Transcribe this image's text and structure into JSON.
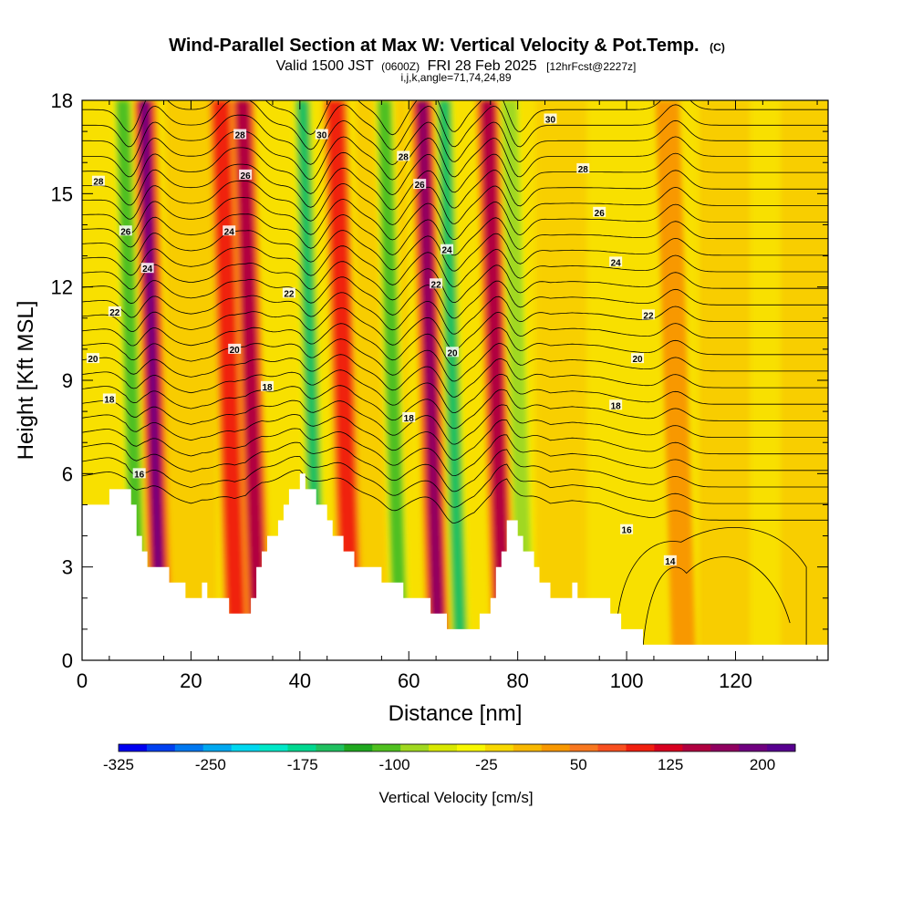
{
  "title": {
    "main": "Wind-Parallel Section at Max W: Vertical Velocity & Pot.Temp.",
    "copyright": "(C)",
    "valid_prefix": "Valid 1500 JST",
    "valid_z": "(0600Z)",
    "valid_date": "FRI 28 Feb 2025",
    "forecast": "[12hrFcst@2227z]",
    "indices": "i,j,k,angle=71,74,24,89"
  },
  "chart_data": {
    "type": "heatmap",
    "xlabel": "Distance [nm]",
    "ylabel": "Height [Kft MSL]",
    "xlim": [
      0,
      137
    ],
    "ylim": [
      0,
      18
    ],
    "xticks": [
      "0",
      "20",
      "40",
      "60",
      "80",
      "100",
      "120"
    ],
    "yticks": [
      "0",
      "3",
      "6",
      "9",
      "12",
      "15",
      "18"
    ],
    "colorbar": {
      "label": "Vertical Velocity [cm/s]",
      "tick_labels": [
        "-325",
        "-250",
        "-175",
        "-100",
        "-25",
        "50",
        "125",
        "200"
      ],
      "colors": [
        "#0000f0",
        "#0040f0",
        "#0078f0",
        "#00a8f0",
        "#00d8f0",
        "#00e8c8",
        "#00d890",
        "#20c060",
        "#20a820",
        "#50c020",
        "#a0d820",
        "#d8e800",
        "#f8f800",
        "#f8d800",
        "#f8b800",
        "#f89800",
        "#f87820",
        "#f85020",
        "#f02010",
        "#d80020",
        "#b00040",
        "#900060",
        "#700080",
        "#580090"
      ]
    },
    "terrain_kft": {
      "x_nm": [
        0,
        5,
        8,
        10,
        12,
        15,
        18,
        20,
        22,
        25,
        28,
        30,
        33,
        36,
        40,
        43,
        45,
        48,
        50,
        55,
        58,
        62,
        65,
        68,
        72,
        75,
        78,
        80,
        83,
        86,
        90,
        95,
        100,
        105,
        110,
        115,
        120,
        125,
        130,
        135,
        137
      ],
      "h_kft": [
        4.8,
        5.3,
        5.5,
        4.0,
        3.0,
        2.8,
        2.3,
        2.0,
        2.3,
        2.0,
        1.3,
        1.6,
        3.5,
        4.5,
        6.0,
        5.2,
        4.3,
        3.5,
        3.0,
        2.7,
        2.3,
        2.0,
        1.5,
        1.0,
        1.0,
        2.0,
        4.5,
        4.0,
        3.0,
        2.0,
        2.3,
        2.0,
        1.0,
        0.4,
        0.3,
        0.3,
        0.3,
        0.3,
        0.3,
        0.3,
        0.3
      ]
    },
    "updraft_bands": [
      {
        "x_nm": 13,
        "w_cm_s": 200
      },
      {
        "x_nm": 27,
        "w_cm_s": 125
      },
      {
        "x_nm": 31,
        "w_cm_s": 150
      },
      {
        "x_nm": 48,
        "w_cm_s": 100
      },
      {
        "x_nm": 64,
        "w_cm_s": 175
      },
      {
        "x_nm": 76,
        "w_cm_s": 150
      },
      {
        "x_nm": 109,
        "w_cm_s": 50
      }
    ],
    "downdraft_bands": [
      {
        "x_nm": 9,
        "w_cm_s": -125
      },
      {
        "x_nm": 42,
        "w_cm_s": -175
      },
      {
        "x_nm": 57,
        "w_cm_s": -125
      },
      {
        "x_nm": 68,
        "w_cm_s": -150
      },
      {
        "x_nm": 80,
        "w_cm_s": -100
      }
    ],
    "theta_contours": {
      "levels": [
        14,
        16,
        18,
        20,
        22,
        24,
        26,
        28,
        30
      ],
      "labels": [
        {
          "text": "28",
          "x_nm": 3,
          "y_kft": 15.4
        },
        {
          "text": "26",
          "x_nm": 8,
          "y_kft": 13.8
        },
        {
          "text": "24",
          "x_nm": 12,
          "y_kft": 12.6
        },
        {
          "text": "22",
          "x_nm": 6,
          "y_kft": 11.2
        },
        {
          "text": "20",
          "x_nm": 2,
          "y_kft": 9.7
        },
        {
          "text": "18",
          "x_nm": 5,
          "y_kft": 8.4
        },
        {
          "text": "16",
          "x_nm": 10.5,
          "y_kft": 6.0
        },
        {
          "text": "28",
          "x_nm": 29,
          "y_kft": 16.9
        },
        {
          "text": "26",
          "x_nm": 30,
          "y_kft": 15.6
        },
        {
          "text": "24",
          "x_nm": 27,
          "y_kft": 13.8
        },
        {
          "text": "22",
          "x_nm": 38,
          "y_kft": 11.8
        },
        {
          "text": "20",
          "x_nm": 28,
          "y_kft": 10.0
        },
        {
          "text": "18",
          "x_nm": 34,
          "y_kft": 8.8
        },
        {
          "text": "30",
          "x_nm": 44,
          "y_kft": 16.9
        },
        {
          "text": "28",
          "x_nm": 59,
          "y_kft": 16.2
        },
        {
          "text": "26",
          "x_nm": 62,
          "y_kft": 15.3
        },
        {
          "text": "24",
          "x_nm": 67,
          "y_kft": 13.2
        },
        {
          "text": "22",
          "x_nm": 65,
          "y_kft": 12.1
        },
        {
          "text": "20",
          "x_nm": 68,
          "y_kft": 9.9
        },
        {
          "text": "18",
          "x_nm": 60,
          "y_kft": 7.8
        },
        {
          "text": "30",
          "x_nm": 86,
          "y_kft": 17.4
        },
        {
          "text": "28",
          "x_nm": 92,
          "y_kft": 15.8
        },
        {
          "text": "26",
          "x_nm": 95,
          "y_kft": 14.4
        },
        {
          "text": "24",
          "x_nm": 98,
          "y_kft": 12.8
        },
        {
          "text": "22",
          "x_nm": 104,
          "y_kft": 11.1
        },
        {
          "text": "20",
          "x_nm": 102,
          "y_kft": 9.7
        },
        {
          "text": "18",
          "x_nm": 98,
          "y_kft": 8.2
        },
        {
          "text": "16",
          "x_nm": 100,
          "y_kft": 4.2
        },
        {
          "text": "14",
          "x_nm": 108,
          "y_kft": 3.2
        }
      ]
    }
  }
}
